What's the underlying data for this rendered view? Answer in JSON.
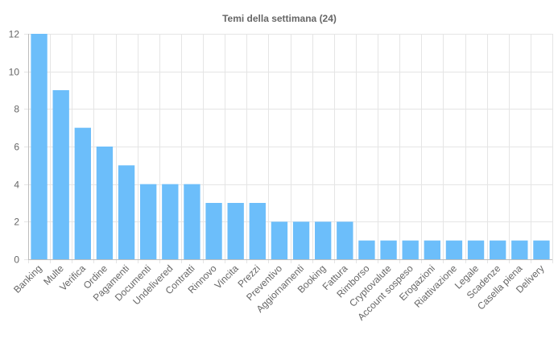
{
  "chart_data": {
    "type": "bar",
    "title": "Temi della settimana (24)",
    "xlabel": "",
    "ylabel": "",
    "ylim": [
      0,
      12
    ],
    "yticks": [
      0,
      2,
      4,
      6,
      8,
      10,
      12
    ],
    "grid": true,
    "legend": "none",
    "bar_color": "#6cbefa",
    "categories": [
      "Banking",
      "Multe",
      "Verifica",
      "Ordine",
      "Pagamenti",
      "Documenti",
      "Undelivered",
      "Contratti",
      "Rinnovo",
      "Vincita",
      "Prezzi",
      "Preventivo",
      "Aggiornamenti",
      "Booking",
      "Fattura",
      "Rimborso",
      "Cryptovalute",
      "Account sospeso",
      "Erogazioni",
      "Riattivazione",
      "Legale",
      "Scadenze",
      "Casella piena",
      "Delivery"
    ],
    "values": [
      12,
      9,
      7,
      6,
      5,
      4,
      4,
      4,
      3,
      3,
      3,
      2,
      2,
      2,
      2,
      1,
      1,
      1,
      1,
      1,
      1,
      1,
      1,
      1
    ]
  }
}
